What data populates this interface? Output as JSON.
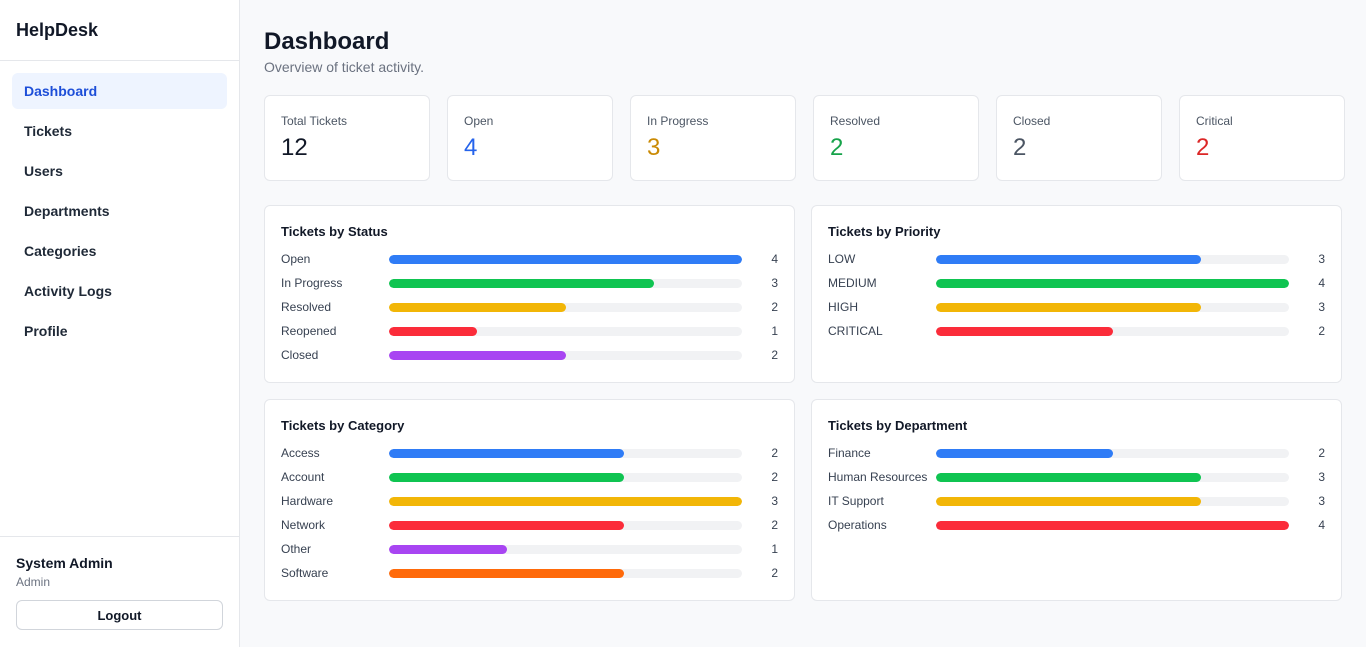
{
  "app": {
    "brand": "HelpDesk"
  },
  "sidebar": {
    "items": [
      {
        "label": "Dashboard",
        "active": true
      },
      {
        "label": "Tickets"
      },
      {
        "label": "Users"
      },
      {
        "label": "Departments"
      },
      {
        "label": "Categories"
      },
      {
        "label": "Activity Logs"
      },
      {
        "label": "Profile"
      }
    ],
    "user": {
      "name": "System Admin",
      "role": "Admin",
      "logout_label": "Logout"
    }
  },
  "header": {
    "title": "Dashboard",
    "subtitle": "Overview of ticket activity."
  },
  "stats": [
    {
      "label": "Total Tickets",
      "value": "12",
      "color": "#111827"
    },
    {
      "label": "Open",
      "value": "4",
      "color": "#2563eb"
    },
    {
      "label": "In Progress",
      "value": "3",
      "color": "#ca8a04"
    },
    {
      "label": "Resolved",
      "value": "2",
      "color": "#16a34a"
    },
    {
      "label": "Closed",
      "value": "2",
      "color": "#4b5563"
    },
    {
      "label": "Critical",
      "value": "2",
      "color": "#dc2626"
    }
  ],
  "panels": [
    {
      "title": "Tickets by Status",
      "max": 4,
      "rows": [
        {
          "label": "Open",
          "value": 4,
          "color": "#2f7cf6"
        },
        {
          "label": "In Progress",
          "value": 3,
          "color": "#0fc451"
        },
        {
          "label": "Resolved",
          "value": 2,
          "color": "#f2b607"
        },
        {
          "label": "Reopened",
          "value": 1,
          "color": "#fb2c3a"
        },
        {
          "label": "Closed",
          "value": 2,
          "color": "#a845f2"
        }
      ]
    },
    {
      "title": "Tickets by Priority",
      "max": 4,
      "rows": [
        {
          "label": "LOW",
          "value": 3,
          "color": "#2f7cf6"
        },
        {
          "label": "MEDIUM",
          "value": 4,
          "color": "#0fc451"
        },
        {
          "label": "HIGH",
          "value": 3,
          "color": "#f2b607"
        },
        {
          "label": "CRITICAL",
          "value": 2,
          "color": "#fb2c3a"
        }
      ]
    },
    {
      "title": "Tickets by Category",
      "max": 3,
      "rows": [
        {
          "label": "Access",
          "value": 2,
          "color": "#2f7cf6"
        },
        {
          "label": "Account",
          "value": 2,
          "color": "#0fc451"
        },
        {
          "label": "Hardware",
          "value": 3,
          "color": "#f2b607"
        },
        {
          "label": "Network",
          "value": 2,
          "color": "#fb2c3a"
        },
        {
          "label": "Other",
          "value": 1,
          "color": "#a845f2"
        },
        {
          "label": "Software",
          "value": 2,
          "color": "#ff6a0a"
        }
      ]
    },
    {
      "title": "Tickets by Department",
      "max": 4,
      "rows": [
        {
          "label": "Finance",
          "value": 2,
          "color": "#2f7cf6"
        },
        {
          "label": "Human Resources",
          "value": 3,
          "color": "#0fc451"
        },
        {
          "label": "IT Support",
          "value": 3,
          "color": "#f2b607"
        },
        {
          "label": "Operations",
          "value": 4,
          "color": "#fb2c3a"
        }
      ]
    }
  ]
}
